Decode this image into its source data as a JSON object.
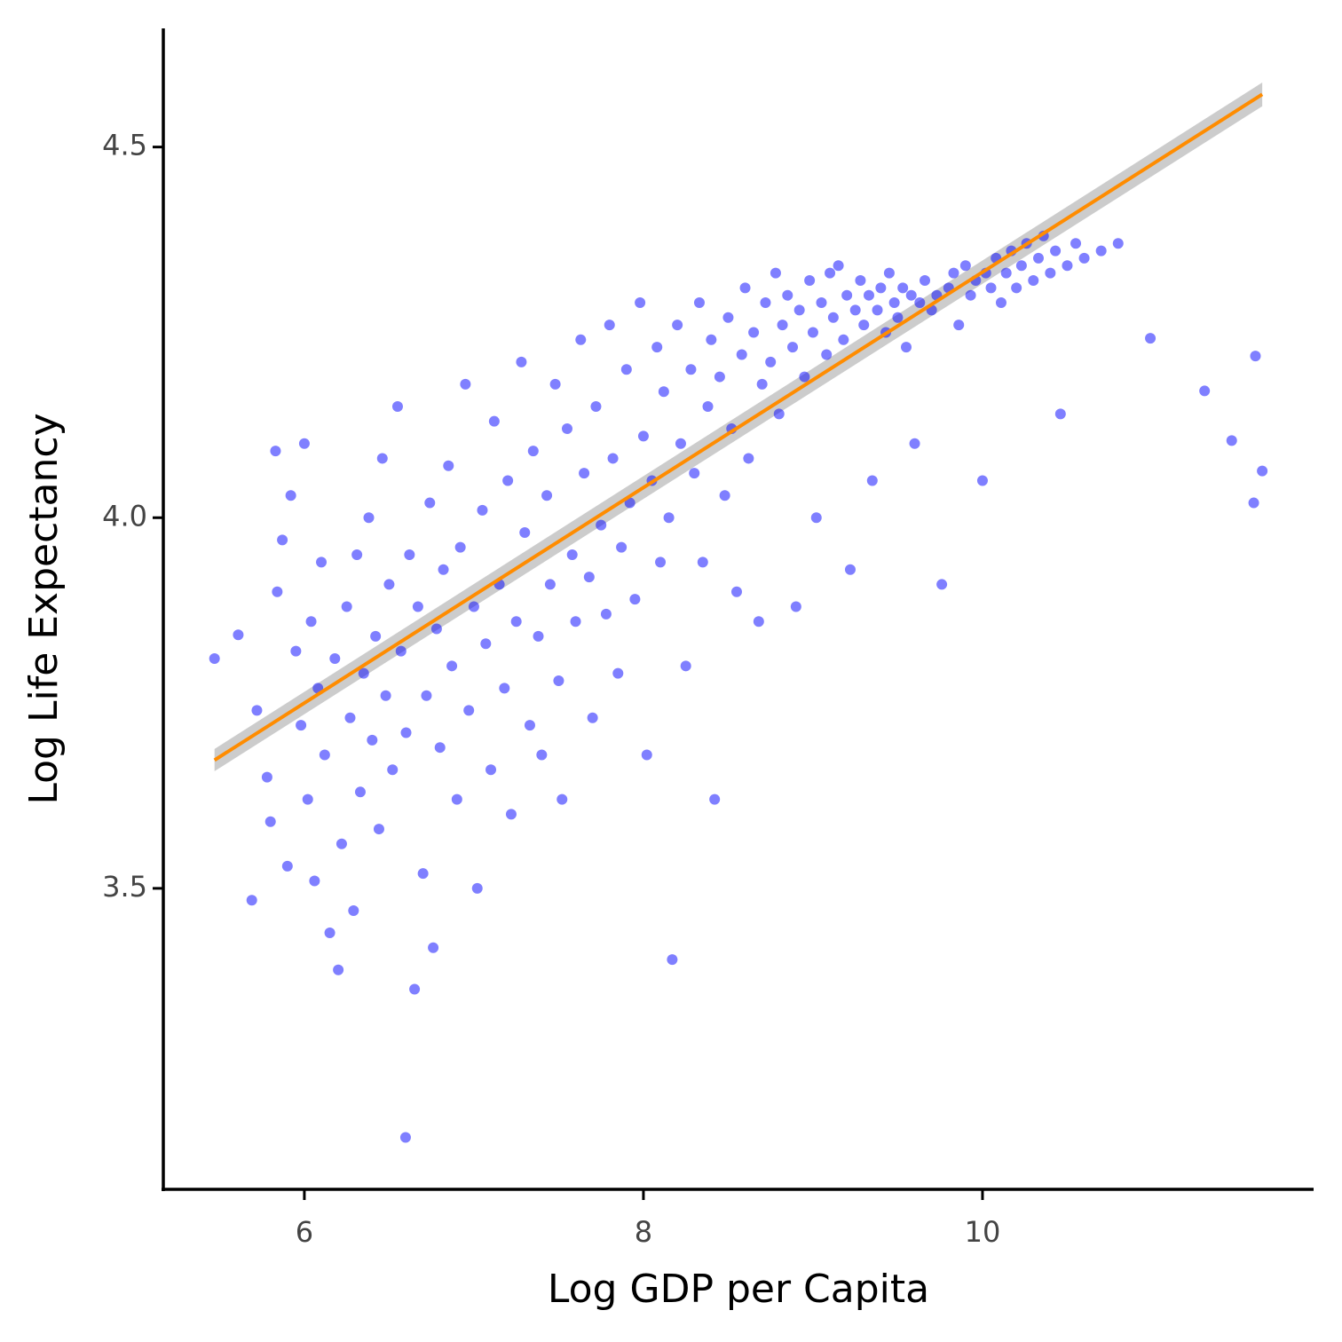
{
  "chart_data": {
    "type": "scatter",
    "x_label": "Log GDP per Capita",
    "y_label": "Log Life Expectancy",
    "xlim": [
      5.168,
      11.953
    ],
    "ylim": [
      3.094,
      4.66
    ],
    "xticks": [
      6,
      8,
      10
    ],
    "yticks": [
      3.5,
      {
        "value": 4,
        "label": "4.0"
      },
      4.5
    ],
    "color": "#0000ff",
    "opacity": 0.5,
    "x": [
      5.47,
      5.61,
      5.69,
      5.72,
      5.78,
      5.8,
      5.83,
      5.84,
      5.87,
      5.9,
      5.92,
      5.95,
      5.98,
      6.0,
      6.02,
      6.04,
      6.06,
      6.08,
      6.1,
      6.12,
      6.15,
      6.18,
      6.2,
      6.22,
      6.25,
      6.27,
      6.29,
      6.31,
      6.33,
      6.35,
      6.38,
      6.4,
      6.42,
      6.44,
      6.46,
      6.48,
      6.5,
      6.52,
      6.55,
      6.57,
      6.597,
      6.6,
      6.62,
      6.65,
      6.67,
      6.7,
      6.72,
      6.74,
      6.76,
      6.78,
      6.8,
      6.82,
      6.85,
      6.87,
      6.9,
      6.92,
      6.95,
      6.97,
      7.0,
      7.02,
      7.05,
      7.07,
      7.1,
      7.12,
      7.15,
      7.18,
      7.2,
      7.22,
      7.25,
      7.28,
      7.3,
      7.33,
      7.35,
      7.38,
      7.4,
      7.43,
      7.45,
      7.48,
      7.5,
      7.52,
      7.55,
      7.58,
      7.6,
      7.63,
      7.65,
      7.68,
      7.7,
      7.72,
      7.75,
      7.78,
      7.8,
      7.82,
      7.85,
      7.87,
      7.9,
      7.92,
      7.95,
      7.98,
      8.0,
      8.02,
      8.05,
      8.08,
      8.1,
      8.12,
      8.15,
      8.17,
      8.2,
      8.22,
      8.25,
      8.28,
      8.3,
      8.33,
      8.35,
      8.38,
      8.4,
      8.42,
      8.45,
      8.48,
      8.5,
      8.52,
      8.55,
      8.58,
      8.6,
      8.62,
      8.65,
      8.68,
      8.7,
      8.72,
      8.75,
      8.78,
      8.8,
      8.82,
      8.85,
      8.88,
      8.9,
      8.92,
      8.95,
      8.98,
      9.0,
      9.02,
      9.05,
      9.08,
      9.1,
      9.12,
      9.15,
      9.18,
      9.2,
      9.22,
      9.25,
      9.28,
      9.3,
      9.33,
      9.35,
      9.38,
      9.4,
      9.43,
      9.45,
      9.48,
      9.5,
      9.53,
      9.55,
      9.58,
      9.6,
      9.63,
      9.66,
      9.7,
      9.73,
      9.76,
      9.8,
      9.83,
      9.86,
      9.9,
      9.93,
      9.96,
      10.0,
      10.02,
      10.05,
      10.08,
      10.11,
      10.14,
      10.17,
      10.2,
      10.23,
      10.26,
      10.3,
      10.33,
      10.36,
      10.4,
      10.43,
      10.46,
      10.5,
      10.55,
      10.6,
      10.7,
      10.8,
      10.99,
      11.31,
      11.47,
      11.61,
      11.65,
      11.6
    ],
    "y": [
      3.81,
      3.842,
      3.484,
      3.74,
      3.65,
      3.59,
      4.09,
      3.9,
      3.97,
      3.53,
      4.03,
      3.82,
      3.72,
      4.1,
      3.62,
      3.86,
      3.51,
      3.77,
      3.94,
      3.68,
      3.44,
      3.81,
      3.39,
      3.56,
      3.88,
      3.73,
      3.47,
      3.95,
      3.63,
      3.79,
      4.0,
      3.7,
      3.84,
      3.58,
      4.08,
      3.76,
      3.91,
      3.66,
      4.15,
      3.82,
      3.164,
      3.71,
      3.95,
      3.364,
      3.88,
      3.52,
      3.76,
      4.02,
      3.42,
      3.85,
      3.69,
      3.93,
      4.07,
      3.8,
      3.62,
      3.96,
      4.18,
      3.74,
      3.88,
      3.5,
      4.01,
      3.83,
      3.66,
      4.13,
      3.91,
      3.77,
      4.05,
      3.6,
      3.86,
      4.21,
      3.98,
      3.72,
      4.09,
      3.84,
      3.68,
      4.03,
      3.91,
      4.18,
      3.78,
      3.62,
      4.12,
      3.95,
      3.86,
      4.24,
      4.06,
      3.92,
      3.73,
      4.15,
      3.99,
      3.87,
      4.26,
      4.08,
      3.79,
      3.96,
      4.2,
      4.02,
      3.89,
      4.29,
      4.11,
      3.68,
      4.05,
      4.23,
      3.94,
      4.17,
      4.0,
      3.404,
      4.26,
      4.1,
      3.8,
      4.2,
      4.06,
      4.29,
      3.94,
      4.15,
      4.24,
      3.62,
      4.19,
      4.03,
      4.27,
      4.12,
      3.9,
      4.22,
      4.31,
      4.08,
      4.25,
      3.86,
      4.18,
      4.29,
      4.21,
      4.33,
      4.14,
      4.26,
      4.3,
      4.23,
      3.88,
      4.28,
      4.19,
      4.32,
      4.25,
      4.0,
      4.29,
      4.22,
      4.33,
      4.27,
      4.34,
      4.24,
      4.3,
      3.93,
      4.28,
      4.32,
      4.26,
      4.3,
      4.05,
      4.28,
      4.31,
      4.25,
      4.33,
      4.29,
      4.27,
      4.31,
      4.23,
      4.3,
      4.1,
      4.29,
      4.32,
      4.28,
      4.3,
      3.91,
      4.31,
      4.33,
      4.26,
      4.34,
      4.3,
      4.32,
      4.05,
      4.33,
      4.31,
      4.35,
      4.29,
      4.33,
      4.36,
      4.31,
      4.34,
      4.37,
      4.32,
      4.35,
      4.38,
      4.33,
      4.36,
      4.14,
      4.34,
      4.37,
      4.35,
      4.36,
      4.37,
      4.242,
      4.171,
      4.104,
      4.218,
      4.063,
      4.02
    ],
    "fit": {
      "color": "#ff8c00",
      "band_color": "#cccccc",
      "x": [
        5.47,
        11.65
      ],
      "y": [
        3.673,
        4.571
      ],
      "lower": [
        3.658,
        4.555
      ],
      "upper": [
        3.688,
        4.587
      ]
    }
  }
}
